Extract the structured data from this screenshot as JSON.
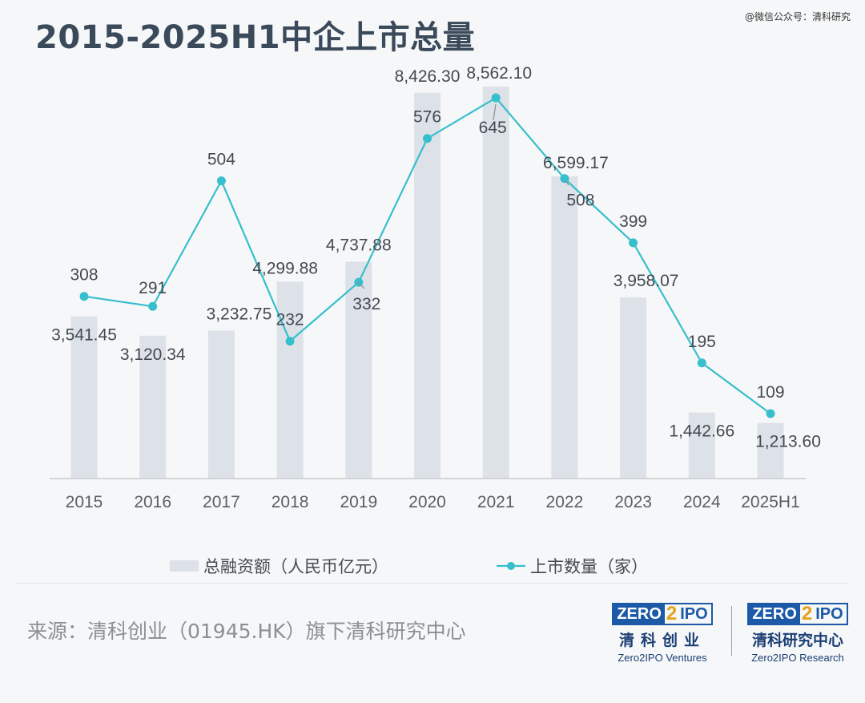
{
  "header": {
    "title": "2015-2025H1中企上市总量",
    "watermark": "@微信公众号：清科研究"
  },
  "chart_data": {
    "type": "bar+line",
    "categories": [
      "2015",
      "2016",
      "2017",
      "2018",
      "2019",
      "2020",
      "2021",
      "2022",
      "2023",
      "2024",
      "2025H1"
    ],
    "series": [
      {
        "name": "总融资额（人民币亿元）",
        "type": "bar",
        "values": [
          3541.45,
          3120.34,
          3232.75,
          4299.88,
          4737.88,
          8426.3,
          8562.1,
          6599.17,
          3958.07,
          1442.66,
          1213.6
        ],
        "labels": [
          "3,541.45",
          "3,120.34",
          "3,232.75",
          "4,299.88",
          "4,737.88",
          "8,426.30",
          "8,562.10",
          "6,599.17",
          "3,958.07",
          "1,442.66",
          "1,213.60"
        ]
      },
      {
        "name": "上市数量（家）",
        "type": "line",
        "values": [
          308,
          291,
          504,
          232,
          332,
          576,
          645,
          508,
          399,
          195,
          109
        ],
        "labels": [
          "308",
          "291",
          "504",
          "232",
          "332",
          "576",
          "645",
          "508",
          "399",
          "195",
          "109"
        ]
      }
    ],
    "legend": "bottom",
    "grid": false,
    "colors": {
      "bar": "#dde1e8",
      "line": "#36bfcc",
      "axis": "#c9ccd0"
    }
  },
  "footer": {
    "source": "来源：清科创业（01945.HK）旗下清科研究中心",
    "logo_ventures": {
      "word_a": "ZERO",
      "word_two": "2",
      "word_b": "IPO",
      "cn": "清科创业",
      "en": "Zero2IPO Ventures"
    },
    "logo_research": {
      "word_a": "ZERO",
      "word_two": "2",
      "word_b": "IPO",
      "cn": "清科研究中心",
      "en": "Zero2IPO Research"
    }
  }
}
